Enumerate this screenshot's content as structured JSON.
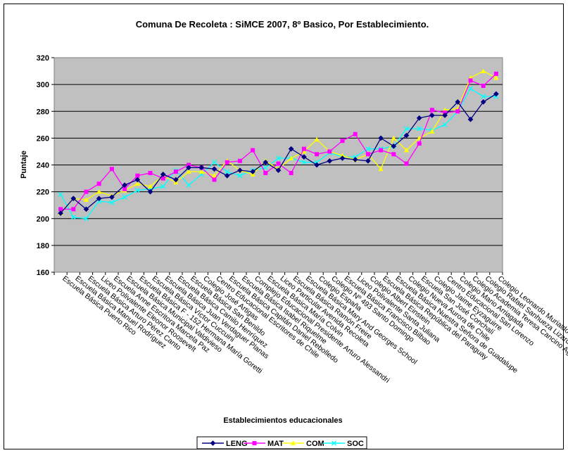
{
  "chart_data": {
    "type": "line",
    "title": "Comuna De Recoleta : SiMCE 2007, 8º Basico, Por Establecimiento.",
    "xlabel": "Establecimientos educacionales",
    "ylabel": "Puntaje",
    "ylim": [
      160,
      320
    ],
    "yticks": [
      160,
      180,
      200,
      220,
      240,
      260,
      280,
      300,
      320
    ],
    "grid": true,
    "legend_position": "bottom",
    "categories": [
      "Escuela Básica Puerto Rico",
      "Escuela Básica Manuel Rodríguez",
      "Escuela Básica Arturo Pérez Canto",
      "Liceo Polivalente Eleonor Roosevelt",
      "Escuela Anne Escritora Marcela Paz",
      "Escuela Básica Municipal Valdivieso",
      "Escuela Básica F - 152 Hermana María Goretti",
      "Escuela Básica Víctor Cuccuini",
      "Escuela Básica Juan Verdaguer Planas",
      "Escuela Básica Camilo Henríquez",
      "Escuela Básica San Benildo",
      "Colegio José Artigas",
      "Centro Educacional Escritores de Chile",
      "Escuela Básica Capitán Daniel Rebolledo",
      "Escuela Básica Isabel Riquelme",
      "Complejo Educacional Presidente Arturo Alessandri",
      "Escuela Básica María Colvin",
      "Liceo Particular Avenida Recoleta",
      "Escuela Básica Ramón Freire",
      "Escuela Básica Mary And Georges School",
      "Colegio España",
      "Colegio Nº 493 Santo Domingo",
      "Escuela Básica Francisco Bilbao",
      "Liceo Polivalente Santa Juliana",
      "Colegio Albert Einstein",
      "Escuela Básica República del Paraguay",
      "Escuela Básica Nuestra Señora de Guadalupe",
      "Colegio Nueva Aurora de Chile",
      "Escuela San José Conchalí",
      "Colegio Jaime Eyzaguirre",
      "Centro Educacional San Lorenzo",
      "Colegio Mario Arriagada",
      "Colegio Academia Teresa Cancino Aguilar",
      "Colegio Rafael Sanhueza Lizardi",
      "Colegio Leonardo Murialdo"
    ],
    "series": [
      {
        "name": "LENG",
        "color": "#000080",
        "marker": "diamond",
        "values": [
          204,
          215,
          207,
          215,
          216,
          225,
          229,
          220,
          233,
          229,
          238,
          238,
          237,
          232,
          236,
          235,
          242,
          236,
          252,
          246,
          240,
          243,
          245,
          244,
          243,
          260,
          254,
          262,
          275,
          277,
          277,
          287,
          274,
          287,
          293
        ]
      },
      {
        "name": "MAT",
        "color": "#ff00ff",
        "marker": "square",
        "values": [
          207,
          207,
          220,
          226,
          237,
          222,
          232,
          234,
          230,
          235,
          240,
          238,
          229,
          242,
          243,
          251,
          234,
          241,
          234,
          252,
          248,
          250,
          258,
          263,
          248,
          251,
          248,
          241,
          256,
          281,
          279,
          280,
          303,
          299,
          308
        ]
      },
      {
        "name": "COM",
        "color": "#ffff00",
        "marker": "triangle",
        "values": [
          204,
          215,
          214,
          220,
          217,
          221,
          226,
          224,
          232,
          227,
          235,
          235,
          232,
          243,
          236,
          233,
          243,
          237,
          245,
          250,
          259,
          250,
          247,
          244,
          248,
          237,
          260,
          251,
          260,
          265,
          281,
          282,
          305,
          310,
          305
        ]
      },
      {
        "name": "SOC",
        "color": "#00ffff",
        "marker": "x",
        "values": [
          218,
          201,
          200,
          213,
          212,
          216,
          221,
          222,
          224,
          236,
          225,
          233,
          242,
          235,
          232,
          236,
          238,
          245,
          245,
          242,
          242,
          249,
          246,
          246,
          252,
          252,
          254,
          267,
          267,
          266,
          270,
          280,
          297,
          291,
          291
        ]
      }
    ]
  }
}
